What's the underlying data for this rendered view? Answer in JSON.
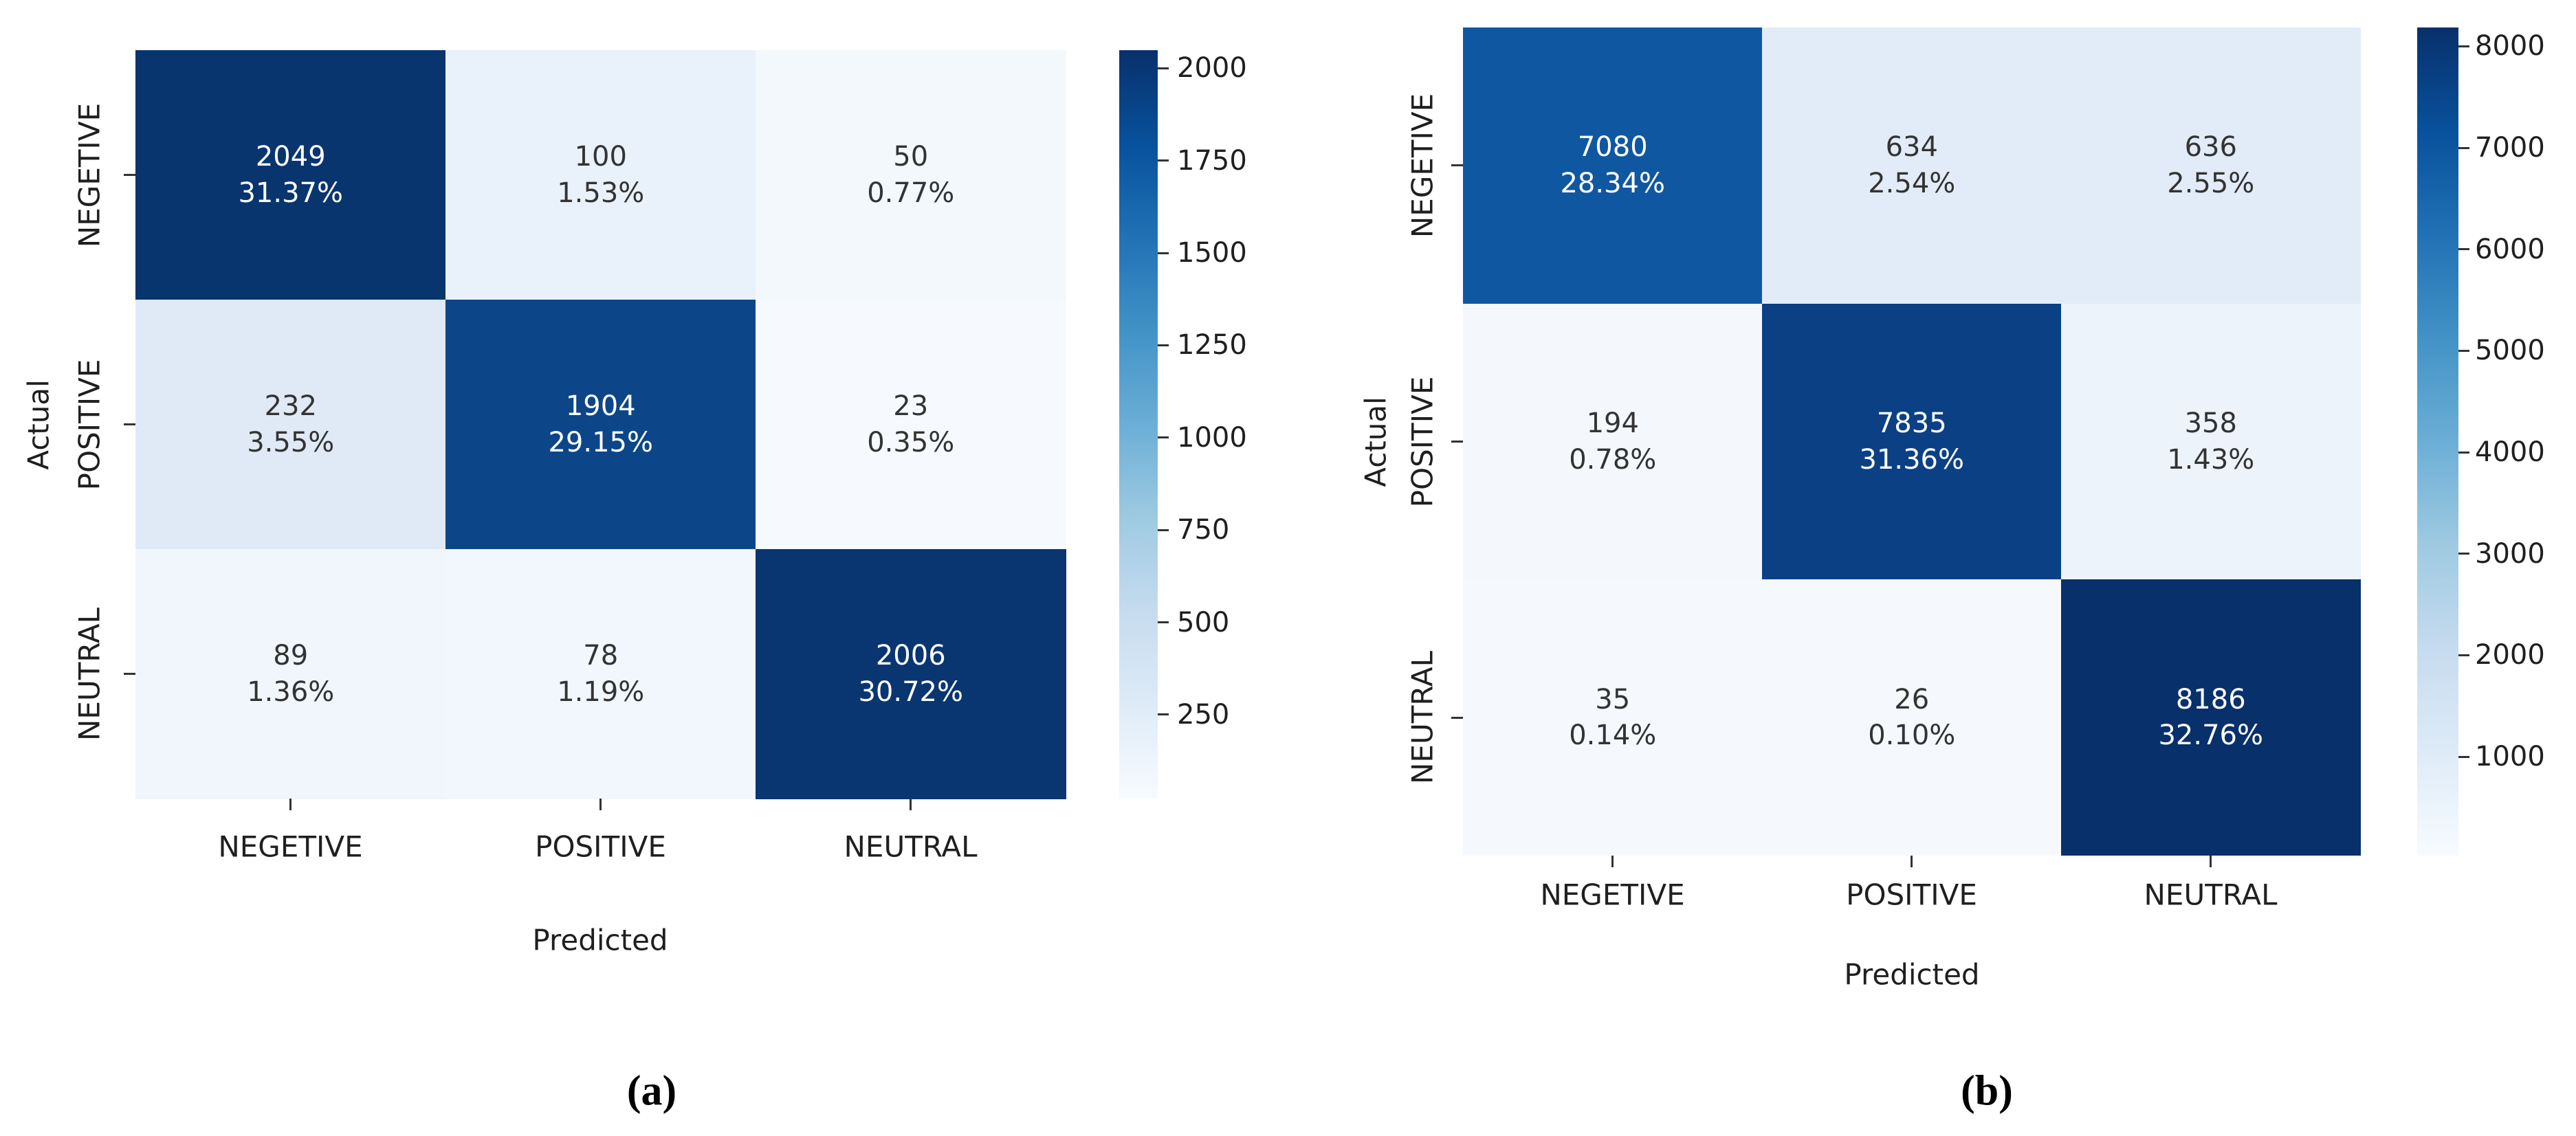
{
  "figure": {
    "background": "#ffffff",
    "text_color": "#1f1f1f",
    "annotation_light_text": "#ffffff",
    "annotation_dark_text": "#333333"
  },
  "chart_data": [
    {
      "type": "heatmap",
      "caption": "(a)",
      "xlabel": "Predicted",
      "ylabel": "Actual",
      "x_categories": [
        "NEGETIVE",
        "POSITIVE",
        "NEUTRAL"
      ],
      "y_categories": [
        "NEGETIVE",
        "POSITIVE",
        "NEUTRAL"
      ],
      "counts": [
        [
          2049,
          100,
          50
        ],
        [
          232,
          1904,
          23
        ],
        [
          89,
          78,
          2006
        ]
      ],
      "percents": [
        [
          "31.37%",
          "1.53%",
          "0.77%"
        ],
        [
          "3.55%",
          "29.15%",
          "0.35%"
        ],
        [
          "1.36%",
          "1.19%",
          "30.72%"
        ]
      ],
      "vmin": 23,
      "vmax": 2049,
      "colorbar_ticks": [
        2000,
        1750,
        1500,
        1250,
        1000,
        750,
        500,
        250
      ],
      "colormap": "Blues",
      "colormap_stops": [
        "#08306b",
        "#08519c",
        "#2171b5",
        "#4292c6",
        "#6baed6",
        "#9ecae1",
        "#c6dbef",
        "#deebf7",
        "#f7fbff"
      ],
      "cell_colors": [
        [
          "#09356f",
          "#e9f1fa",
          "#f3f8fd"
        ],
        [
          "#dfeaf6",
          "#0c4689",
          "#f6fafe"
        ],
        [
          "#f0f6fc",
          "#f1f7fd",
          "#093671"
        ]
      ],
      "cell_text_colors": [
        [
          "#ffffff",
          "#333333",
          "#333333"
        ],
        [
          "#333333",
          "#ffffff",
          "#333333"
        ],
        [
          "#333333",
          "#333333",
          "#ffffff"
        ]
      ]
    },
    {
      "type": "heatmap",
      "caption": "(b)",
      "xlabel": "Predicted",
      "ylabel": "Actual",
      "x_categories": [
        "NEGETIVE",
        "POSITIVE",
        "NEUTRAL"
      ],
      "y_categories": [
        "NEGETIVE",
        "POSITIVE",
        "NEUTRAL"
      ],
      "counts": [
        [
          7080,
          634,
          636
        ],
        [
          194,
          7835,
          358
        ],
        [
          35,
          26,
          8186
        ]
      ],
      "percents": [
        [
          "28.34%",
          "2.54%",
          "2.55%"
        ],
        [
          "0.78%",
          "31.36%",
          "1.43%"
        ],
        [
          "0.14%",
          "0.10%",
          "32.76%"
        ]
      ],
      "vmin": 26,
      "vmax": 8186,
      "colorbar_ticks": [
        8000,
        7000,
        6000,
        5000,
        4000,
        3000,
        2000,
        1000
      ],
      "colormap": "Blues",
      "colormap_stops": [
        "#08306b",
        "#08519c",
        "#2171b5",
        "#4292c6",
        "#6baed6",
        "#9ecae1",
        "#c6dbef",
        "#deebf7",
        "#f7fbff"
      ],
      "cell_colors": [
        [
          "#1057a2",
          "#e2ecf8",
          "#e2ecf8"
        ],
        [
          "#f4f8fd",
          "#0b4085",
          "#ecf3fb"
        ],
        [
          "#f5f9fe",
          "#f5f9fe",
          "#08306b"
        ]
      ],
      "cell_text_colors": [
        [
          "#ffffff",
          "#333333",
          "#333333"
        ],
        [
          "#333333",
          "#ffffff",
          "#333333"
        ],
        [
          "#333333",
          "#333333",
          "#ffffff"
        ]
      ]
    }
  ]
}
